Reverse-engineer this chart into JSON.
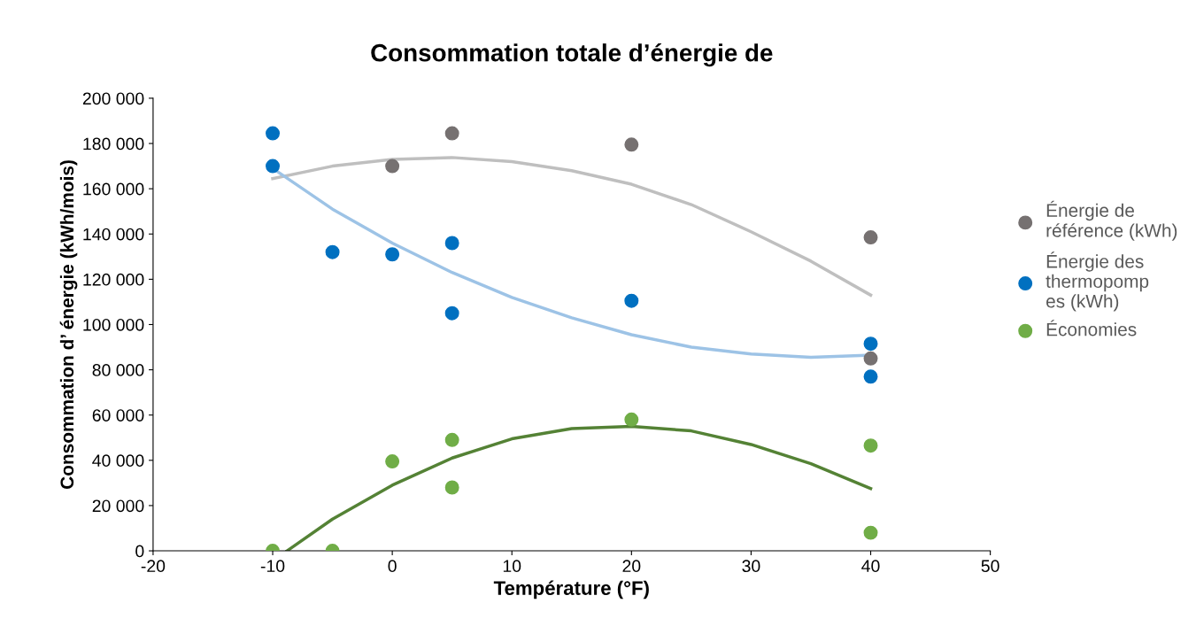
{
  "chart_data": {
    "type": "scatter",
    "title": "Consommation totale d’énergie de",
    "xlabel": "Température (°F)",
    "ylabel": "Consommation d’ énergie (kWh/mois)",
    "xlim": [
      -20,
      50
    ],
    "xticks": [
      -20,
      -10,
      0,
      10,
      20,
      30,
      40,
      50
    ],
    "ylim": [
      0,
      200000
    ],
    "yticks": [
      {
        "value": 0,
        "label": "0"
      },
      {
        "value": 20000,
        "label": "20 000"
      },
      {
        "value": 40000,
        "label": "40 000"
      },
      {
        "value": 60000,
        "label": "60 000"
      },
      {
        "value": 80000,
        "label": "80 000"
      },
      {
        "value": 100000,
        "label": "100 000"
      },
      {
        "value": 120000,
        "label": "120 000"
      },
      {
        "value": 140000,
        "label": "140 000"
      },
      {
        "value": 160000,
        "label": "160 000"
      },
      {
        "value": 180000,
        "label": "180 000"
      },
      {
        "value": 200000,
        "label": "200 000"
      }
    ],
    "grid": false,
    "legend": "right",
    "marker": "circle",
    "series": [
      {
        "name": "Énergie de\nréférence (kWh)",
        "color": "#767171",
        "x": [
          0,
          5,
          20,
          40,
          40
        ],
        "values": [
          170000,
          184500,
          179500,
          138500,
          85000
        ]
      },
      {
        "name": "Énergie des\nthermopomp\nes (kWh)",
        "color": "#0070c0",
        "x": [
          -10,
          -10,
          -5,
          0,
          5,
          5,
          20,
          40,
          40
        ],
        "values": [
          184500,
          170000,
          132000,
          131000,
          136000,
          105000,
          110500,
          91500,
          77000
        ]
      },
      {
        "name": "Économies",
        "color": "#70ad47",
        "x": [
          -10,
          -5,
          0,
          5,
          5,
          20,
          40,
          40
        ],
        "values": [
          0,
          0,
          39500,
          49000,
          28000,
          58000,
          46500,
          8000
        ]
      },
      {
        "type": "line",
        "marker": "none",
        "color": "#bfbfbf",
        "x": [
          -10,
          -5,
          0,
          5,
          10,
          15,
          20,
          25,
          30,
          35,
          40
        ],
        "values": [
          164500,
          170000,
          173000,
          173800,
          172000,
          168000,
          162000,
          153000,
          141000,
          128000,
          113000
        ]
      },
      {
        "type": "line",
        "marker": "none",
        "color": "#9dc3e6",
        "x": [
          -10,
          -5,
          0,
          5,
          10,
          15,
          20,
          25,
          30,
          35,
          40
        ],
        "values": [
          169000,
          151000,
          136000,
          123000,
          112000,
          103000,
          95500,
          90000,
          87000,
          85500,
          86500
        ]
      },
      {
        "type": "line",
        "marker": "none",
        "color": "#548235",
        "x": [
          -8.8,
          -5,
          0,
          5,
          10,
          15,
          20,
          25,
          30,
          35,
          40
        ],
        "values": [
          0,
          14000,
          29000,
          41000,
          49500,
          54000,
          55000,
          53000,
          47000,
          38500,
          27500
        ]
      }
    ]
  }
}
